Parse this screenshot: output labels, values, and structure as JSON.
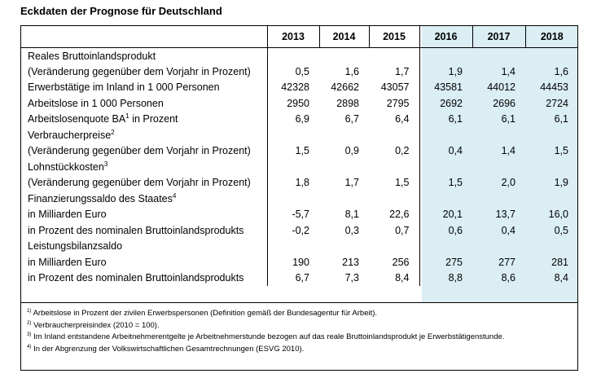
{
  "title": "Eckdaten der Prognose für Deutschland",
  "columns": [
    "2013",
    "2014",
    "2015",
    "2016",
    "2017",
    "2018"
  ],
  "rows": [
    {
      "label": "Reales Bruttoinlandsprodukt",
      "values": [
        "",
        "",
        "",
        "",
        "",
        ""
      ]
    },
    {
      "label": "(Veränderung gegenüber dem Vorjahr in Prozent)",
      "values": [
        "0,5",
        "1,6",
        "1,7",
        "1,9",
        "1,4",
        "1,6"
      ]
    },
    {
      "label": "Erwerbstätige im Inland in 1 000 Personen",
      "values": [
        "42328",
        "42662",
        "43057",
        "43581",
        "44012",
        "44453"
      ]
    },
    {
      "label": "Arbeitslose in 1 000 Personen",
      "values": [
        "2950",
        "2898",
        "2795",
        "2692",
        "2696",
        "2724"
      ]
    },
    {
      "label": "Arbeitslosenquote BA",
      "sup": "1",
      "suffix": " in Prozent",
      "values": [
        "6,9",
        "6,7",
        "6,4",
        "6,1",
        "6,1",
        "6,1"
      ]
    },
    {
      "label": "Verbraucherpreise",
      "sup": "2",
      "values": [
        "",
        "",
        "",
        "",
        "",
        ""
      ]
    },
    {
      "label": "(Veränderung gegenüber dem Vorjahr in Prozent)",
      "values": [
        "1,5",
        "0,9",
        "0,2",
        "0,4",
        "1,4",
        "1,5"
      ]
    },
    {
      "label": "Lohnstückkosten",
      "sup": "3",
      "values": [
        "",
        "",
        "",
        "",
        "",
        ""
      ]
    },
    {
      "label": "(Veränderung gegenüber dem Vorjahr in Prozent)",
      "values": [
        "1,8",
        "1,7",
        "1,5",
        "1,5",
        "2,0",
        "1,9"
      ]
    },
    {
      "label": "Finanzierungssaldo des Staates",
      "sup": "4",
      "values": [
        "",
        "",
        "",
        "",
        "",
        ""
      ]
    },
    {
      "label": "in Milliarden Euro",
      "values": [
        "-5,7",
        "8,1",
        "22,6",
        "20,1",
        "13,7",
        "16,0"
      ]
    },
    {
      "label": "in Prozent des nominalen Bruttoinlandsprodukts",
      "values": [
        "-0,2",
        "0,3",
        "0,7",
        "0,6",
        "0,4",
        "0,5"
      ]
    },
    {
      "label": "Leistungsbilanzsaldo",
      "values": [
        "",
        "",
        "",
        "",
        "",
        ""
      ]
    },
    {
      "label": "in Milliarden Euro",
      "values": [
        "190",
        "213",
        "256",
        "275",
        "277",
        "281"
      ]
    },
    {
      "label": "in Prozent des nominalen Bruttoinlandsprodukts",
      "values": [
        "6,7",
        "7,3",
        "8,4",
        "8,8",
        "8,6",
        "8,4"
      ]
    }
  ],
  "footnotes": [
    {
      "mark": "1)",
      "text": " Arbeitslose in Prozent der zivilen Erwerbspersonen (Definition gemäß der Bundesagentur für Arbeit)."
    },
    {
      "mark": "2)",
      "text": " Verbraucherpreisindex (2010 = 100)."
    },
    {
      "mark": "3)",
      "text": " Im Inland entstandene Arbeitnehmerentgelte je Arbeitnehmerstunde bezogen auf das reale Bruttoinlandsprodukt je Erwerbstätigenstunde."
    },
    {
      "mark": "4)",
      "text": " In der Abgrenzung der Volkswirtschaftlichen Gesamtrechnungen (ESVG 2010)."
    }
  ]
}
